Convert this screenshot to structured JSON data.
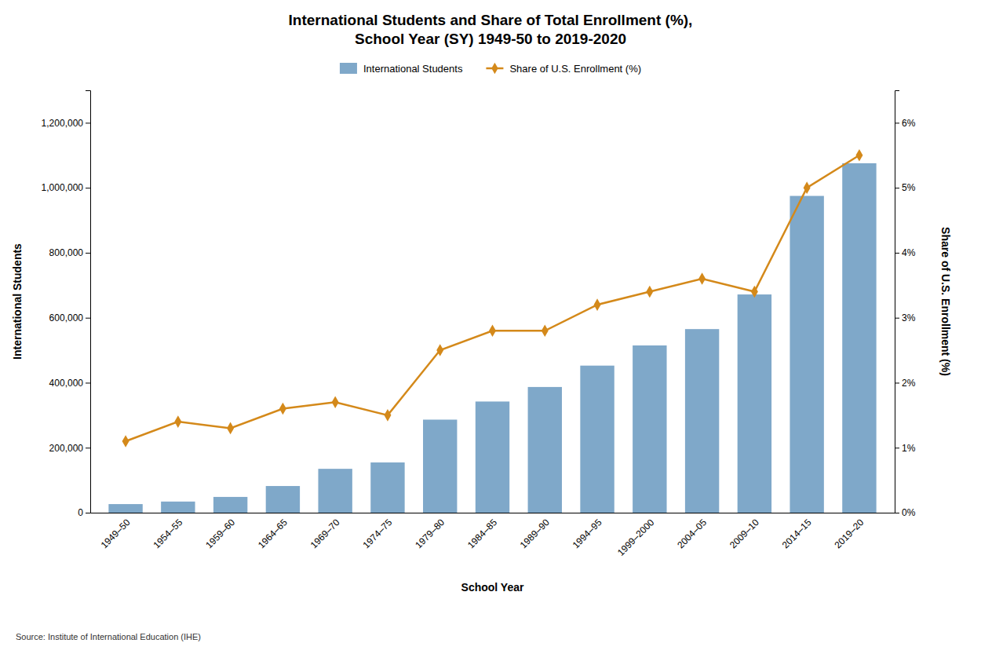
{
  "chart_data": {
    "type": "bar",
    "title": "International Students and Share of Total Enrollment (%),\nSchool Year (SY) 1949-50 to 2019-2020",
    "xlabel": "School Year",
    "ylabel": "International Students",
    "y2label": "Share of U.S. Enrollment (%)",
    "annotations": [
      "Source: Institute of International Education (IHE)"
    ],
    "categories": [
      "1949–50",
      "1954–55",
      "1959–60",
      "1964–65",
      "1969–70",
      "1974–75",
      "1979–80",
      "1984–85",
      "1989–90",
      "1994–95",
      "1999–2000",
      "2004–05",
      "2009–10",
      "2014–15",
      "2019–20"
    ],
    "series": [
      {
        "name": "International Students",
        "type": "bar",
        "color": "#7fa8c9",
        "values": [
          26433,
          34232,
          48486,
          82045,
          134959,
          154580,
          286343,
          342110,
          386851,
          452635,
          514723,
          565039,
          671616,
          974926,
          1075496
        ]
      },
      {
        "name": "Share of U.S. Enrollment (%)",
        "type": "line",
        "axis": "y2",
        "color": "#d4891a",
        "marker": "diamond",
        "line_style": "solid",
        "values": [
          1.1,
          1.4,
          1.3,
          1.6,
          1.7,
          1.5,
          2.5,
          2.8,
          2.8,
          3.2,
          3.4,
          3.6,
          3.4,
          5.0,
          5.5
        ]
      }
    ],
    "ylim": [
      0,
      1300000
    ],
    "yticks": [
      0,
      {
        "value": 200000,
        "label": "200,000"
      },
      {
        "value": 400000,
        "label": "400,000"
      },
      {
        "value": 600000,
        "label": "600,000"
      },
      {
        "value": 800000,
        "label": "800,000"
      },
      {
        "value": 1000000,
        "label": "1,000,000"
      },
      {
        "value": 1200000,
        "label": "1,200,000"
      }
    ],
    "y2lim": [
      0,
      6.5
    ],
    "y2ticks": [
      {
        "value": 0,
        "label": "0%"
      },
      {
        "value": 1,
        "label": "1%"
      },
      {
        "value": 2,
        "label": "2%"
      },
      {
        "value": 3,
        "label": "3%"
      },
      {
        "value": 4,
        "label": "4%"
      },
      {
        "value": 5,
        "label": "5%"
      },
      {
        "value": 6,
        "label": "6%"
      }
    ],
    "legend": "top",
    "grid": false
  }
}
